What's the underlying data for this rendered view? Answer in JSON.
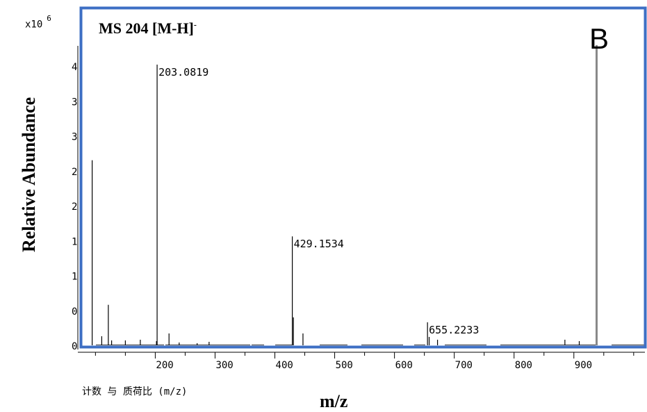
{
  "exponent_label": {
    "base": "x10",
    "power": "6"
  },
  "panel": {
    "title": "MS 204 [M-H]",
    "title_sup": "-",
    "letter": "B"
  },
  "footer_label": "计数 与 质荷比 (m/z)",
  "colors": {
    "frame": "#3d6fc4",
    "tall_line": "#888888"
  },
  "chart_data": {
    "type": "bar",
    "xlabel": "m/z",
    "ylabel": "Relative Abundance",
    "xlim": [
      50,
      1000
    ],
    "ylim": [
      0,
      4.5
    ],
    "x_ticks": [
      200,
      300,
      400,
      500,
      600,
      700,
      800,
      900
    ],
    "y_tick_labels": [
      {
        "value": 4.0,
        "text": "4"
      },
      {
        "value": 3.5,
        "text": "3."
      },
      {
        "value": 3.0,
        "text": "3"
      },
      {
        "value": 2.5,
        "text": "2."
      },
      {
        "value": 2.0,
        "text": "2"
      },
      {
        "value": 1.5,
        "text": "1."
      },
      {
        "value": 1.0,
        "text": "1"
      },
      {
        "value": 0.5,
        "text": "0."
      },
      {
        "value": 0.0,
        "text": "0"
      }
    ],
    "annotations": [
      {
        "x": 203.0819,
        "y": 4.02,
        "text": "203.0819"
      },
      {
        "x": 429.1534,
        "y": 1.56,
        "text": "429.1534"
      },
      {
        "x": 655.2233,
        "y": 0.33,
        "text": "655.2233"
      }
    ],
    "peaks": [
      {
        "x": 94.5,
        "y": 2.65
      },
      {
        "x": 110.5,
        "y": 0.13
      },
      {
        "x": 121.5,
        "y": 0.58
      },
      {
        "x": 127,
        "y": 0.07
      },
      {
        "x": 150,
        "y": 0.07
      },
      {
        "x": 175,
        "y": 0.08
      },
      {
        "x": 202,
        "y": 0.06
      },
      {
        "x": 203.0819,
        "y": 4.02
      },
      {
        "x": 223,
        "y": 0.17
      },
      {
        "x": 240,
        "y": 0.04
      },
      {
        "x": 270,
        "y": 0.03
      },
      {
        "x": 290,
        "y": 0.05
      },
      {
        "x": 429.1534,
        "y": 1.56
      },
      {
        "x": 431,
        "y": 0.4
      },
      {
        "x": 447,
        "y": 0.17
      },
      {
        "x": 655.2233,
        "y": 0.33
      },
      {
        "x": 658,
        "y": 0.12
      },
      {
        "x": 672,
        "y": 0.08
      },
      {
        "x": 885,
        "y": 0.08
      },
      {
        "x": 909,
        "y": 0.06
      },
      {
        "x": 938,
        "y": 4.3
      }
    ]
  }
}
